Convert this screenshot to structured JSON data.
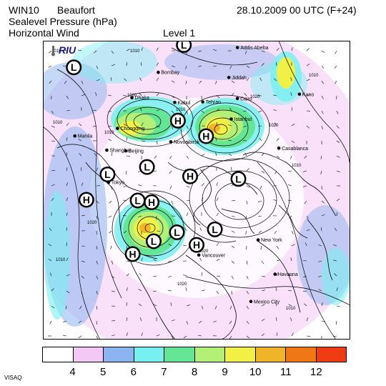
{
  "header": {
    "model": "WIN10",
    "region": "Beaufort",
    "datetime": "28.10.2009 00 UTC (F+24)",
    "field1": "Sealevel Pressure (hPa)",
    "field2": "Horizontal Wind",
    "level": "Level  1"
  },
  "logo_text": "RIU",
  "footer": "VISAQ",
  "legend": {
    "colors": [
      "#ffffff",
      "#f4c8f4",
      "#8cb4f0",
      "#78f0f0",
      "#64e696",
      "#b4f078",
      "#f0f046",
      "#f0b428",
      "#f07814",
      "#f03c14"
    ],
    "labels": [
      "4",
      "5",
      "6",
      "7",
      "8",
      "9",
      "10",
      "11",
      "12"
    ]
  },
  "pressure_centers": [
    {
      "type": "L",
      "label": "L",
      "lon": -150,
      "lat": 60
    },
    {
      "type": "H",
      "label": "H",
      "lon": -170,
      "lat": 35
    },
    {
      "type": "L",
      "label": "L",
      "lon": -165,
      "lat": 48
    },
    {
      "type": "H",
      "label": "H",
      "lon": -125,
      "lat": 55
    },
    {
      "type": "L",
      "label": "L",
      "lon": -100,
      "lat": 62
    },
    {
      "type": "H",
      "label": "H",
      "lon": 160,
      "lat": 60
    },
    {
      "type": "L",
      "label": "L",
      "lon": 155,
      "lat": 52
    },
    {
      "type": "H",
      "label": "H",
      "lon": 80,
      "lat": 80
    },
    {
      "type": "L",
      "label": "L",
      "lon": -20,
      "lat": 62
    },
    {
      "type": "H",
      "label": "H",
      "lon": 45,
      "lat": 55
    },
    {
      "type": "H",
      "label": "H",
      "lon": 70,
      "lat": 45
    },
    {
      "type": "L",
      "label": "L",
      "lon": 120,
      "lat": 55
    },
    {
      "type": "H",
      "label": "H",
      "lon": 150,
      "lat": 25
    },
    {
      "type": "L",
      "label": "L",
      "lon": 135,
      "lat": 35
    },
    {
      "type": "L",
      "label": "L",
      "lon": 60,
      "lat": 10
    },
    {
      "type": "L",
      "label": "L",
      "lon": 100,
      "lat": 0
    }
  ],
  "cities": [
    {
      "name": "Mexico City",
      "lon": -99,
      "lat": 19
    },
    {
      "name": "Havanna",
      "lon": -82,
      "lat": 23
    },
    {
      "name": "New York",
      "lon": -74,
      "lat": 41
    },
    {
      "name": "Vancouver",
      "lon": -123,
      "lat": 49
    },
    {
      "name": "Tokyo",
      "lon": 140,
      "lat": 36
    },
    {
      "name": "Shanghai",
      "lon": 121,
      "lat": 31
    },
    {
      "name": "Manila",
      "lon": 121,
      "lat": 15
    },
    {
      "name": "Chongqing",
      "lon": 107,
      "lat": 30
    },
    {
      "name": "Beijing",
      "lon": 116,
      "lat": 40
    },
    {
      "name": "Novosibirsk",
      "lon": 83,
      "lat": 55
    },
    {
      "name": "Dhaka",
      "lon": 90,
      "lat": 24
    },
    {
      "name": "Kabul",
      "lon": 69,
      "lat": 35
    },
    {
      "name": "Bombay",
      "lon": 73,
      "lat": 19
    },
    {
      "name": "Tehran",
      "lon": 51,
      "lat": 36
    },
    {
      "name": "Istanbul",
      "lon": 29,
      "lat": 41
    },
    {
      "name": "Casablanca",
      "lon": -8,
      "lat": 34
    },
    {
      "name": "Cairo",
      "lon": 31,
      "lat": 30
    },
    {
      "name": "Jiddah",
      "lon": 39,
      "lat": 22
    },
    {
      "name": "Addis Abeba",
      "lon": 39,
      "lat": 9
    },
    {
      "name": "Kano",
      "lon": 8,
      "lat": 12
    }
  ],
  "isobar_labels": [
    "1010",
    "1010",
    "1010",
    "1010",
    "1020",
    "1010",
    "1020",
    "1010",
    "1020",
    "1020",
    "1010",
    "1010",
    "1020",
    "1020",
    "1010",
    "1020",
    "1010"
  ]
}
